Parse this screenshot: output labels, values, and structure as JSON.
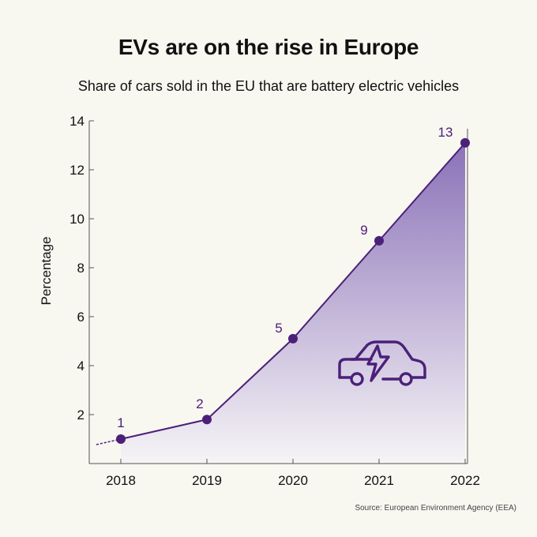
{
  "header": {
    "title": "EVs are on the rise in Europe",
    "subtitle": "Share of cars sold in the EU that are battery electric vehicles"
  },
  "footer": {
    "source": "Source: European Environment Agency (EEA)"
  },
  "chart_data": {
    "type": "area",
    "title": "EVs are on the rise in Europe",
    "subtitle": "Share of cars sold in the EU that are battery electric vehicles",
    "xlabel": "",
    "ylabel": "Percentage",
    "categories": [
      "2018",
      "2019",
      "2020",
      "2021",
      "2022"
    ],
    "values": [
      1,
      1.8,
      5.1,
      9.1,
      13.1
    ],
    "data_labels": [
      "1",
      "2",
      "5",
      "9",
      "13"
    ],
    "ylim": [
      0,
      14
    ],
    "yticks": [
      2,
      4,
      6,
      8,
      10,
      12,
      14
    ],
    "grid": false,
    "colors": {
      "line": "#4b2079",
      "marker": "#4b2079",
      "label": "#4b2079",
      "fill_top": "#8b72b8",
      "fill_bottom": "#f6f4f6",
      "axis": "#555555",
      "icon": "#4b2079"
    },
    "icon": "electric-car-icon"
  }
}
